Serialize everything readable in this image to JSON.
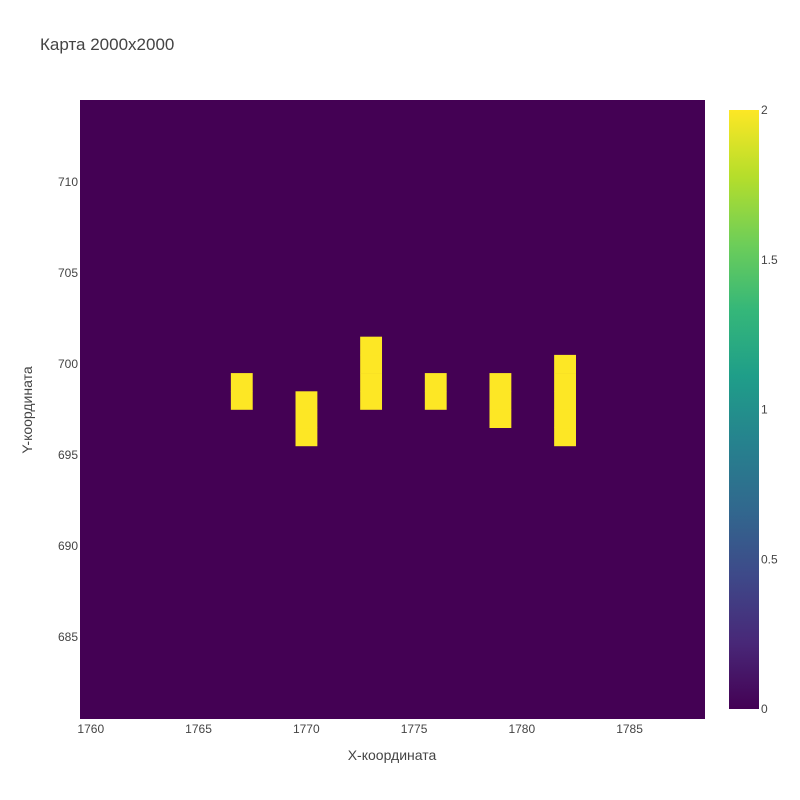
{
  "chart_data": {
    "type": "heatmap",
    "title": "Карта 2000x2000",
    "xlabel": "X-координата",
    "ylabel": "Y-координата",
    "x_range": [
      1759.5,
      1788.5
    ],
    "y_range": [
      680.5,
      714.5
    ],
    "x_ticks": [
      1760,
      1765,
      1770,
      1775,
      1780,
      1785
    ],
    "y_ticks": [
      685,
      690,
      695,
      700,
      705,
      710
    ],
    "background_value": 0,
    "colorscale": "Viridis",
    "colorscale_stops": [
      "#440154",
      "#482878",
      "#3e4989",
      "#31688e",
      "#26828e",
      "#1f9e89",
      "#35b779",
      "#6ece58",
      "#b5de2b",
      "#fde725"
    ],
    "colorbar": {
      "min": 0,
      "max": 2,
      "ticks": [
        0,
        0.5,
        1,
        1.5,
        2
      ],
      "tick_labels": [
        "0",
        "0.5",
        "1",
        "1.5",
        "2"
      ]
    },
    "cells": [
      {
        "x": 1767,
        "y": 698,
        "value": 2
      },
      {
        "x": 1767,
        "y": 699,
        "value": 2
      },
      {
        "x": 1770,
        "y": 696,
        "value": 2
      },
      {
        "x": 1770,
        "y": 697,
        "value": 2
      },
      {
        "x": 1770,
        "y": 698,
        "value": 2
      },
      {
        "x": 1773,
        "y": 698,
        "value": 2
      },
      {
        "x": 1773,
        "y": 699,
        "value": 2
      },
      {
        "x": 1773,
        "y": 700,
        "value": 2
      },
      {
        "x": 1773,
        "y": 701,
        "value": 2
      },
      {
        "x": 1776,
        "y": 698,
        "value": 2
      },
      {
        "x": 1776,
        "y": 699,
        "value": 2
      },
      {
        "x": 1779,
        "y": 697,
        "value": 2
      },
      {
        "x": 1779,
        "y": 698,
        "value": 2
      },
      {
        "x": 1779,
        "y": 699,
        "value": 2
      },
      {
        "x": 1782,
        "y": 696,
        "value": 2
      },
      {
        "x": 1782,
        "y": 697,
        "value": 2
      },
      {
        "x": 1782,
        "y": 698,
        "value": 2
      },
      {
        "x": 1782,
        "y": 699,
        "value": 2
      },
      {
        "x": 1782,
        "y": 700,
        "value": 2
      }
    ]
  }
}
